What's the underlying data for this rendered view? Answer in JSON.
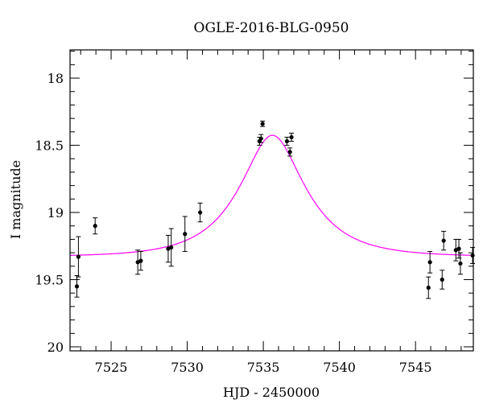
{
  "chart_data": {
    "type": "scatter",
    "title": "OGLE-2016-BLG-0950",
    "xlabel": "HJD - 2450000",
    "ylabel": "I magnitude",
    "xlim": [
      7522.3,
      7548.8
    ],
    "ylim": [
      20.03,
      17.79
    ],
    "y_inverted": true,
    "x_ticks": {
      "major": [
        7525,
        7530,
        7535,
        7540,
        7545
      ],
      "labels": [
        "7525",
        "7530",
        "7535",
        "7540",
        "7545"
      ],
      "minor_step": 1
    },
    "y_ticks": {
      "major": [
        18,
        18.5,
        19,
        19.5,
        20
      ],
      "labels": [
        "18",
        "18.5",
        "19",
        "19.5",
        "20"
      ],
      "minor_step": 0.1
    },
    "grid": false,
    "colors": {
      "points": "#000000",
      "model": "#ff00ff",
      "frame": "#000000"
    },
    "series": [
      {
        "type": "scatter",
        "points": [
          {
            "x": 7522.75,
            "y": 19.55,
            "err": 0.08
          },
          {
            "x": 7522.85,
            "y": 19.33,
            "err": 0.15
          },
          {
            "x": 7523.95,
            "y": 19.1,
            "err": 0.06
          },
          {
            "x": 7526.75,
            "y": 19.37,
            "err": 0.09
          },
          {
            "x": 7526.95,
            "y": 19.36,
            "err": 0.07
          },
          {
            "x": 7528.75,
            "y": 19.27,
            "err": 0.1
          },
          {
            "x": 7528.95,
            "y": 19.26,
            "err": 0.14
          },
          {
            "x": 7529.85,
            "y": 19.16,
            "err": 0.13
          },
          {
            "x": 7530.85,
            "y": 19.0,
            "err": 0.07
          },
          {
            "x": 7534.75,
            "y": 18.47,
            "err": 0.03
          },
          {
            "x": 7534.85,
            "y": 18.45,
            "err": 0.03
          },
          {
            "x": 7534.95,
            "y": 18.34,
            "err": 0.02
          },
          {
            "x": 7536.55,
            "y": 18.47,
            "err": 0.03
          },
          {
            "x": 7536.75,
            "y": 18.55,
            "err": 0.03
          },
          {
            "x": 7536.85,
            "y": 18.44,
            "err": 0.03
          },
          {
            "x": 7545.85,
            "y": 19.56,
            "err": 0.08
          },
          {
            "x": 7545.95,
            "y": 19.37,
            "err": 0.08
          },
          {
            "x": 7546.75,
            "y": 19.5,
            "err": 0.07
          },
          {
            "x": 7546.85,
            "y": 19.21,
            "err": 0.07
          },
          {
            "x": 7547.65,
            "y": 19.28,
            "err": 0.08
          },
          {
            "x": 7547.85,
            "y": 19.27,
            "err": 0.07
          },
          {
            "x": 7547.95,
            "y": 19.38,
            "err": 0.08
          },
          {
            "x": 7548.75,
            "y": 19.32,
            "err": 0.06
          }
        ]
      },
      {
        "type": "line",
        "model": "pspl",
        "t0": 7535.6,
        "u0": 0.47,
        "tE": 3.8,
        "baseline": 19.33
      }
    ]
  }
}
